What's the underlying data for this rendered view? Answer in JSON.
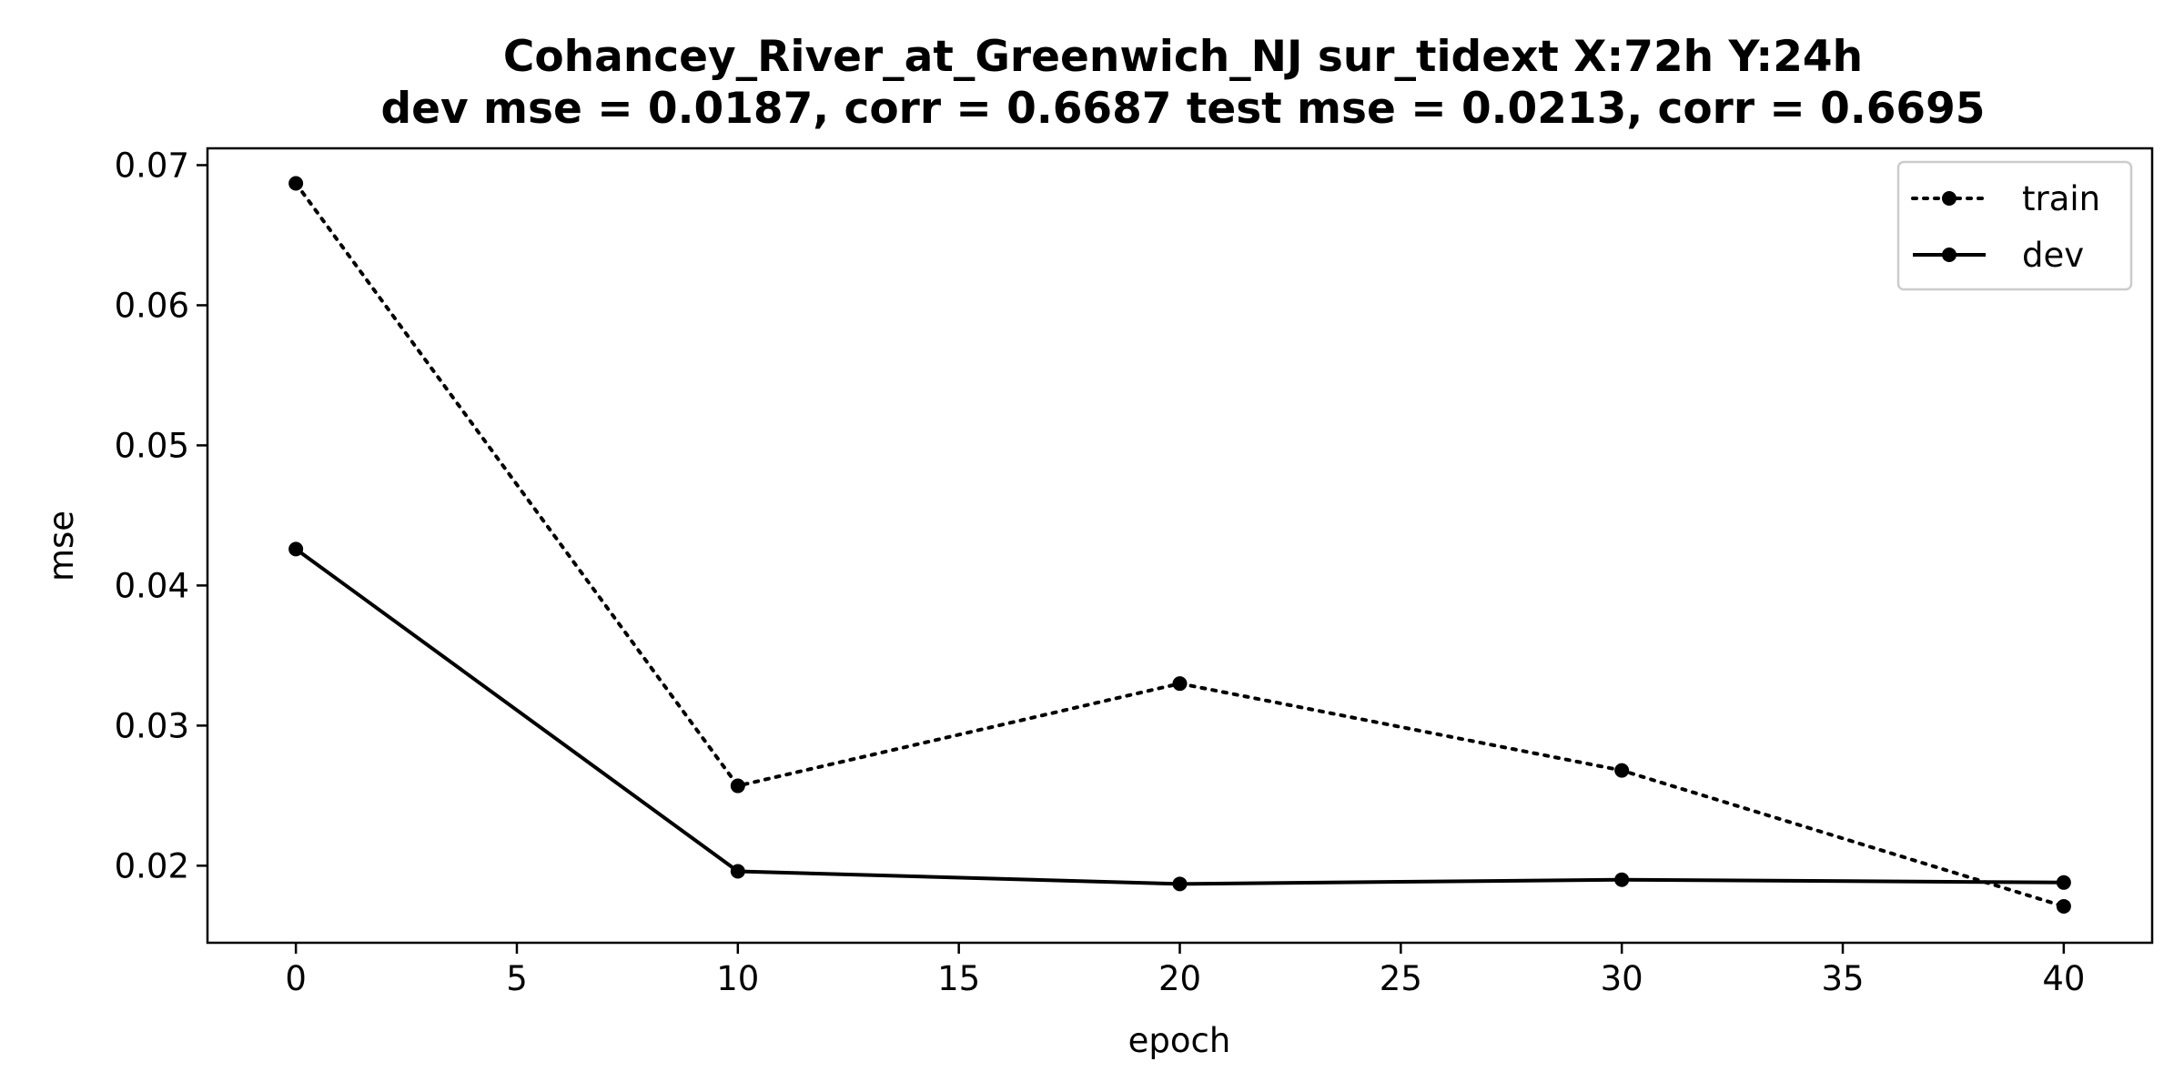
{
  "chart_data": {
    "type": "line",
    "title": "Cohancey_River_at_Greenwich_NJ   sur_tidext   X:72h   Y:24h",
    "subtitle": "dev mse = 0.0187, corr = 0.6687   test mse = 0.0213, corr = 0.6695",
    "xlabel": "epoch",
    "ylabel": "mse",
    "xlim": [
      -2,
      42
    ],
    "ylim": [
      0.0145,
      0.0712
    ],
    "xticks": [
      0,
      5,
      10,
      15,
      20,
      25,
      30,
      35,
      40
    ],
    "xtick_labels": [
      "0",
      "5",
      "10",
      "15",
      "20",
      "25",
      "30",
      "35",
      "40"
    ],
    "yticks": [
      0.02,
      0.03,
      0.04,
      0.05,
      0.06,
      0.07
    ],
    "ytick_labels": [
      "0.02",
      "0.03",
      "0.04",
      "0.05",
      "0.06",
      "0.07"
    ],
    "grid": false,
    "legend": "top-right",
    "series": [
      {
        "name": "train",
        "style": "dotted",
        "color": "#000000",
        "x": [
          0,
          10,
          20,
          30,
          40
        ],
        "y": [
          0.0687,
          0.0257,
          0.033,
          0.0268,
          0.0171
        ]
      },
      {
        "name": "dev",
        "style": "solid",
        "color": "#000000",
        "x": [
          0,
          10,
          20,
          30,
          40
        ],
        "y": [
          0.0426,
          0.0196,
          0.0187,
          0.019,
          0.0188
        ]
      }
    ]
  }
}
